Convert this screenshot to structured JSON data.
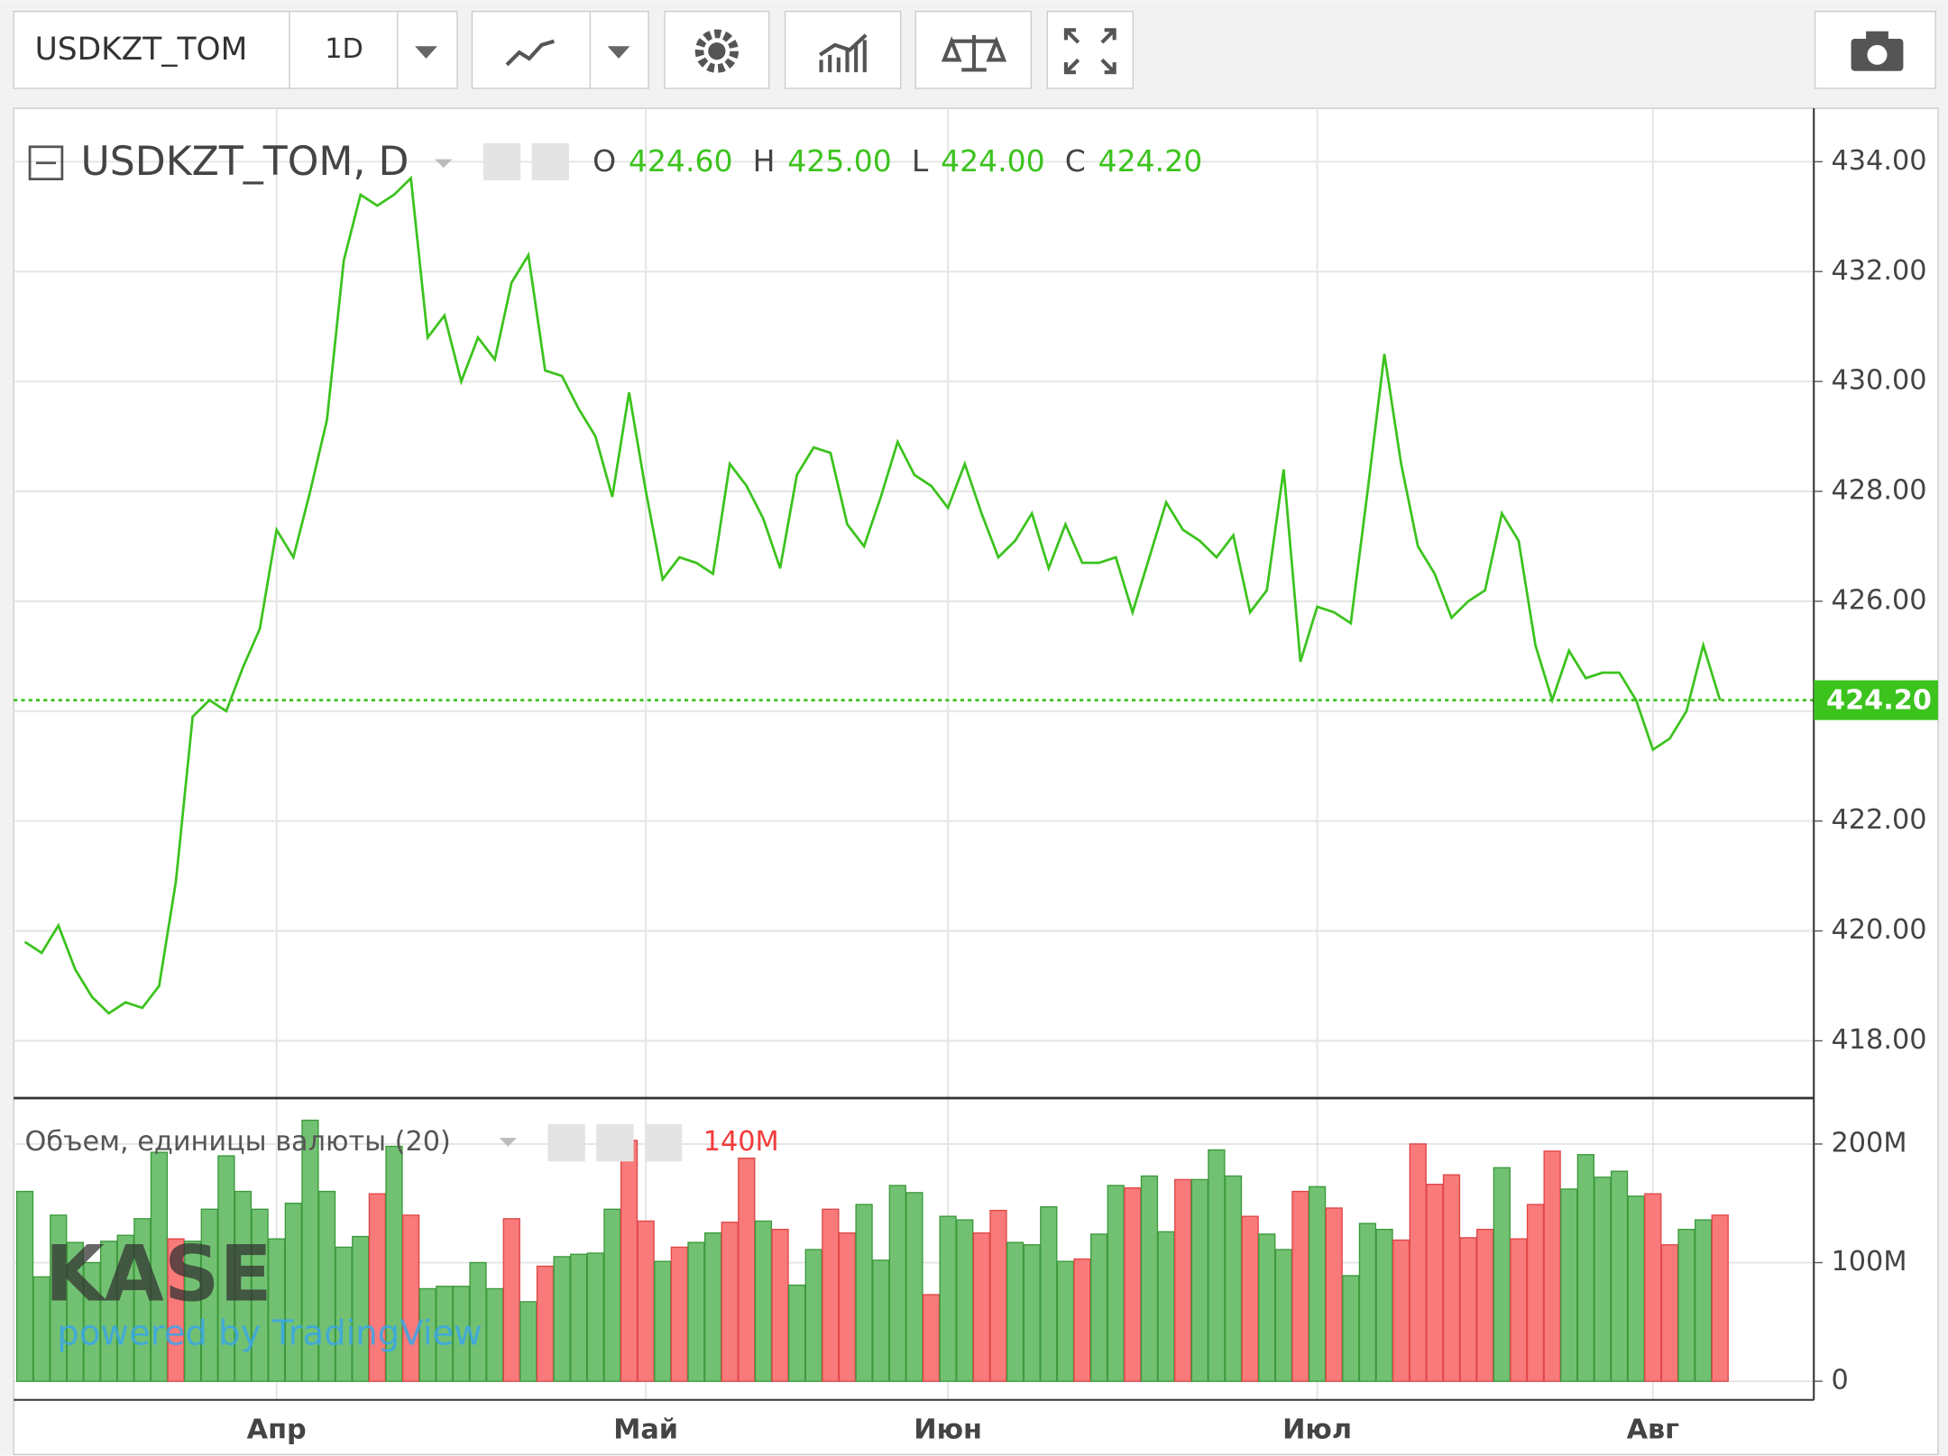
{
  "toolbar": {
    "symbol": "USDKZT_TOM",
    "interval": "1D"
  },
  "chart_data": [
    {
      "type": "line",
      "title": "USDKZT_TOM, D",
      "color": "#3cc31e",
      "ohlc_labels": [
        "O",
        "H",
        "L",
        "C"
      ],
      "ohlc_values": [
        424.6,
        425,
        424,
        424.2
      ],
      "ohlc_value_labels": [
        "424.60",
        "425.00",
        "424.00",
        "424.20"
      ],
      "last_value": 424.2,
      "last_value_label": "424.20",
      "values": [
        419.8,
        419.6,
        420.1,
        419.3,
        418.8,
        418.5,
        418.7,
        418.6,
        419.0,
        420.9,
        423.9,
        424.2,
        424.0,
        424.8,
        425.5,
        427.3,
        426.8,
        428.0,
        429.3,
        432.2,
        433.4,
        433.2,
        433.4,
        433.7,
        430.8,
        431.2,
        430.0,
        430.8,
        430.4,
        431.8,
        432.3,
        430.2,
        430.1,
        429.5,
        429.0,
        427.9,
        429.8,
        428.0,
        426.4,
        426.8,
        426.7,
        426.5,
        428.5,
        428.1,
        427.5,
        426.6,
        428.3,
        428.8,
        428.7,
        427.4,
        427.0,
        427.9,
        428.9,
        428.3,
        428.1,
        427.7,
        428.5,
        427.6,
        426.8,
        427.1,
        427.6,
        426.6,
        427.4,
        426.7,
        426.7,
        426.8,
        425.8,
        426.8,
        427.8,
        427.3,
        427.1,
        426.8,
        427.2,
        425.8,
        426.2,
        428.4,
        424.9,
        425.9,
        425.8,
        425.6,
        428.0,
        430.5,
        428.5,
        427.0,
        426.5,
        425.7,
        426.0,
        426.2,
        427.6,
        427.1,
        425.2,
        424.2,
        425.1,
        424.6,
        424.7,
        424.7,
        424.2,
        423.3,
        423.5,
        424.0,
        425.2,
        424.2
      ],
      "ylim": [
        416.98,
        434.95
      ],
      "yticks": [
        {
          "value": 418,
          "label": "418.00"
        },
        {
          "value": 420,
          "label": "420.00"
        },
        {
          "value": 422,
          "label": "422.00"
        },
        {
          "value": 424,
          "label": "424.00"
        },
        {
          "value": 426,
          "label": "426.00"
        },
        {
          "value": 428,
          "label": "428.00"
        },
        {
          "value": 430,
          "label": "430.00"
        },
        {
          "value": 432,
          "label": "432.00"
        },
        {
          "value": 434,
          "label": "434.00"
        }
      ],
      "grid": true
    },
    {
      "type": "bar",
      "title": "Объем, единицы валюты (20)",
      "last_value_label": "140M",
      "watermark": "KASE",
      "credit": "powered by TradingView",
      "categories": [
        null,
        null,
        null,
        null,
        null,
        null,
        null,
        null,
        null,
        null,
        null,
        null,
        null,
        null,
        null,
        "Апр",
        null,
        null,
        null,
        null,
        null,
        null,
        null,
        null,
        null,
        null,
        null,
        null,
        null,
        null,
        null,
        null,
        null,
        null,
        null,
        null,
        null,
        "Май",
        null,
        null,
        null,
        null,
        null,
        null,
        null,
        null,
        null,
        null,
        null,
        null,
        null,
        null,
        null,
        null,
        null,
        "Июн",
        null,
        null,
        null,
        null,
        null,
        null,
        null,
        null,
        null,
        null,
        null,
        null,
        null,
        null,
        null,
        null,
        null,
        null,
        null,
        null,
        null,
        "Июл",
        null,
        null,
        null,
        null,
        null,
        null,
        null,
        null,
        null,
        null,
        null,
        null,
        null,
        null,
        null,
        null,
        null,
        null,
        null,
        "Авг",
        null,
        null,
        null,
        null
      ],
      "values": [
        160,
        88,
        140,
        117,
        100,
        118,
        123,
        137,
        193,
        120,
        118,
        145,
        190,
        160,
        145,
        120,
        150,
        220,
        160,
        113,
        122,
        158,
        198,
        140,
        78,
        80,
        80,
        100,
        78,
        137,
        67,
        97,
        105,
        107,
        108,
        145,
        203,
        135,
        101,
        113,
        117,
        125,
        134,
        188,
        135,
        128,
        81,
        111,
        145,
        125,
        149,
        102,
        165,
        159,
        73,
        139,
        136,
        125,
        144,
        117,
        115,
        147,
        101,
        103,
        124,
        165,
        163,
        173,
        126,
        170,
        170,
        195,
        173,
        139,
        124,
        111,
        160,
        164,
        146,
        89,
        133,
        128,
        119,
        200,
        166,
        174,
        121,
        128,
        180,
        120,
        149,
        194,
        162,
        191,
        172,
        177,
        156,
        158,
        115,
        128,
        136,
        140
      ],
      "directions": [
        "up",
        "up",
        "up",
        "up",
        "up",
        "up",
        "up",
        "up",
        "up",
        "down",
        "up",
        "up",
        "up",
        "up",
        "up",
        "up",
        "up",
        "up",
        "up",
        "up",
        "up",
        "down",
        "up",
        "down",
        "up",
        "up",
        "up",
        "up",
        "up",
        "down",
        "up",
        "down",
        "up",
        "up",
        "up",
        "up",
        "down",
        "down",
        "up",
        "down",
        "up",
        "up",
        "down",
        "down",
        "up",
        "down",
        "up",
        "up",
        "down",
        "down",
        "up",
        "up",
        "up",
        "up",
        "down",
        "up",
        "up",
        "down",
        "down",
        "up",
        "up",
        "up",
        "up",
        "down",
        "up",
        "up",
        "down",
        "up",
        "up",
        "down",
        "up",
        "up",
        "up",
        "down",
        "up",
        "up",
        "down",
        "up",
        "down",
        "up",
        "up",
        "up",
        "down",
        "down",
        "down",
        "down",
        "down",
        "down",
        "up",
        "down",
        "down",
        "down",
        "up",
        "up",
        "up",
        "up",
        "up",
        "down",
        "down",
        "up",
        "up",
        "down"
      ],
      "colors": {
        "up": "#72c172",
        "down": "#f87a7a"
      },
      "ylim": [
        -15.7,
        236.6
      ],
      "yticks": [
        0,
        {
          "value": 100,
          "label": "100M"
        },
        {
          "value": 200,
          "label": "200M"
        }
      ],
      "grid": true
    }
  ]
}
